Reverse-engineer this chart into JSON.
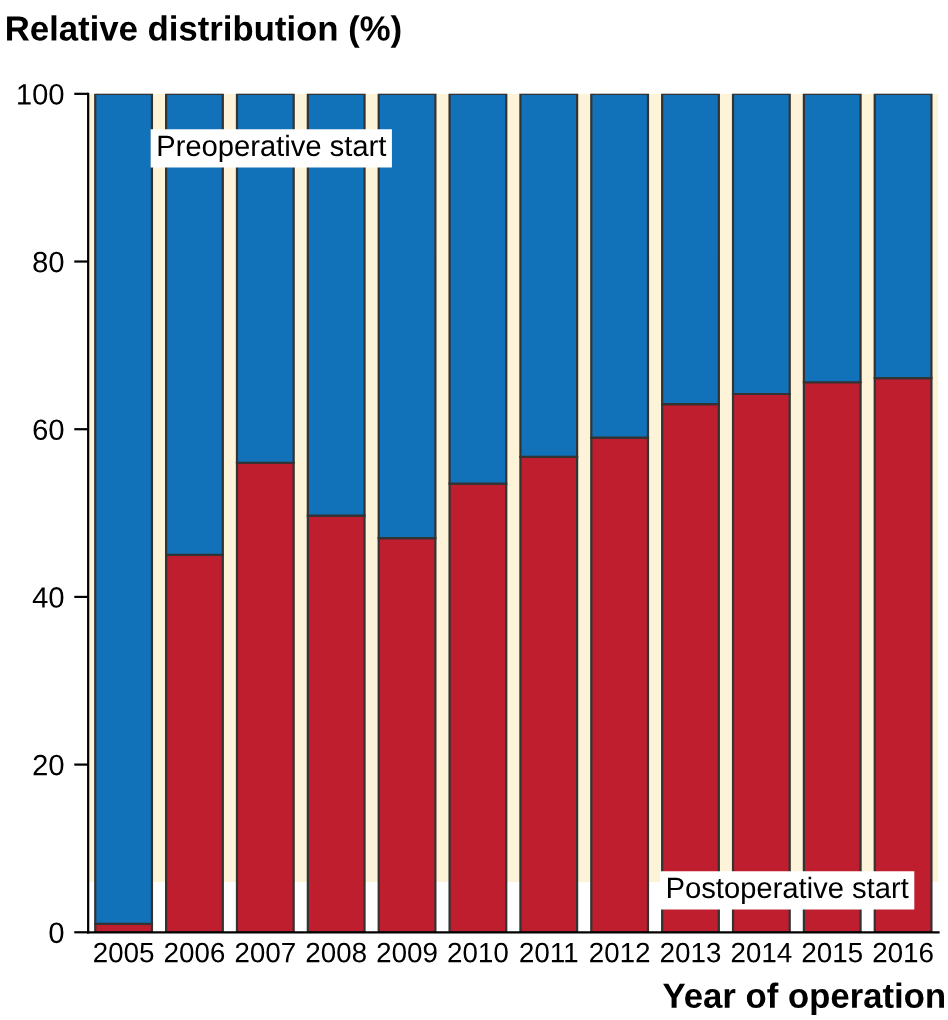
{
  "chart_data": {
    "type": "bar",
    "stacked": true,
    "ylabel": "Relative distribution (%)",
    "xlabel": "Year of operation",
    "categories": [
      "2005",
      "2006",
      "2007",
      "2008",
      "2009",
      "2010",
      "2011",
      "2012",
      "2013",
      "2014",
      "2015",
      "2016"
    ],
    "series": [
      {
        "name": "Postoperative start",
        "color": "#be1e2d",
        "values": [
          1,
          45,
          56,
          49.7,
          47,
          53.5,
          56.7,
          59,
          63,
          64.2,
          65.6,
          66.1
        ]
      },
      {
        "name": "Preoperative start",
        "color": "#1172ba",
        "values": [
          99,
          55,
          44,
          50.3,
          53,
          46.5,
          43.3,
          41,
          37,
          35.8,
          34.4,
          33.9
        ]
      }
    ],
    "bands": [
      {
        "axis": "y",
        "from": 6,
        "to": 100,
        "color": "#fdf3d8"
      }
    ],
    "ylim": [
      0,
      100
    ],
    "yticks": [
      0,
      20,
      40,
      60,
      80,
      100
    ],
    "grid": false,
    "legend": false
  }
}
